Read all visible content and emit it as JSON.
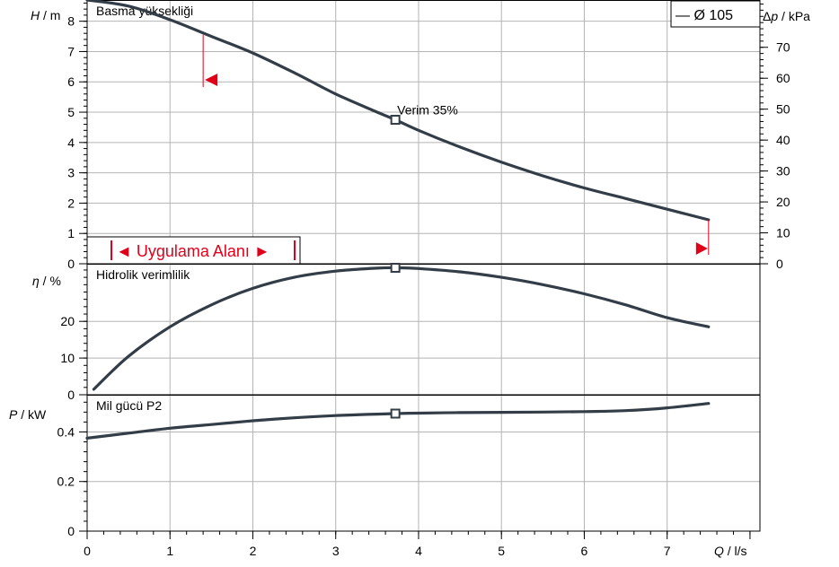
{
  "chart_data": [
    {
      "type": "line",
      "title": "Basma yüksekliği",
      "ylabel_italic": "H",
      "ylabel_unit": " / m",
      "y2label_italic": "Δp",
      "y2label_unit": " / kPa",
      "ylim": [
        0,
        8.7
      ],
      "yticks": [
        0,
        1,
        2,
        3,
        4,
        5,
        6,
        7,
        8
      ],
      "y2lim": [
        0,
        85.3
      ],
      "y2ticks": [
        0,
        10,
        20,
        30,
        40,
        50,
        60,
        70
      ],
      "legend": "— Ø 105",
      "series": [
        {
          "name": "Ø 105",
          "x": [
            0,
            0.5,
            1.0,
            1.5,
            2.0,
            2.5,
            3.0,
            3.5,
            3.72,
            4.0,
            4.5,
            5.0,
            5.5,
            6.0,
            6.5,
            7.0,
            7.5
          ],
          "y": [
            8.7,
            8.5,
            8.05,
            7.5,
            6.95,
            6.3,
            5.6,
            5.0,
            4.75,
            4.4,
            3.85,
            3.35,
            2.9,
            2.5,
            2.15,
            1.8,
            1.45
          ]
        }
      ],
      "operating_point": {
        "x": 3.72,
        "y": 4.75,
        "label": "Verim  35%"
      },
      "application_range": {
        "label": "◄ Uygulama Alanı ►",
        "x_min": 1.4,
        "x_max": 7.5
      }
    },
    {
      "type": "line",
      "title": "Hidrolik verimlilik",
      "ylabel_italic": "η",
      "ylabel_unit": " / %",
      "ylim": [
        0,
        35.7
      ],
      "yticks": [
        0,
        10,
        20
      ],
      "series": [
        {
          "name": "",
          "x": [
            0.08,
            0.5,
            1.0,
            1.5,
            2.0,
            2.5,
            3.0,
            3.5,
            3.72,
            4.0,
            4.5,
            5.0,
            5.5,
            6.0,
            6.5,
            7.0,
            7.5
          ],
          "y": [
            1.5,
            10.5,
            18.5,
            24.5,
            29.0,
            32.0,
            33.7,
            34.5,
            34.6,
            34.4,
            33.5,
            32.0,
            30.0,
            27.5,
            24.5,
            21.0,
            18.5
          ]
        }
      ],
      "operating_point": {
        "x": 3.72,
        "y": 34.6
      }
    },
    {
      "type": "line",
      "title": "Mil gücü P2",
      "ylabel_italic": "P",
      "ylabel_unit": "  / kW",
      "xlabel_italic": "Q",
      "xlabel_unit": " / l/s",
      "ylim": [
        0,
        0.55
      ],
      "yticks": [
        0,
        0.2,
        0.4
      ],
      "xlim": [
        0,
        8.12
      ],
      "xticks": [
        0,
        1,
        2,
        3,
        4,
        5,
        6,
        7
      ],
      "series": [
        {
          "name": "",
          "x": [
            0,
            0.5,
            1.0,
            1.5,
            2.0,
            2.5,
            3.0,
            3.5,
            3.72,
            4.0,
            4.5,
            5.0,
            5.5,
            6.0,
            6.5,
            7.0,
            7.5
          ],
          "y": [
            0.375,
            0.395,
            0.415,
            0.43,
            0.445,
            0.457,
            0.466,
            0.472,
            0.474,
            0.476,
            0.478,
            0.479,
            0.48,
            0.482,
            0.486,
            0.497,
            0.515
          ]
        }
      ],
      "operating_point": {
        "x": 3.72,
        "y": 0.474
      }
    }
  ],
  "colors": {
    "curve": "#333d47",
    "red": "#e0001a",
    "grid": "#b4b4b4",
    "axis": "#000000"
  }
}
